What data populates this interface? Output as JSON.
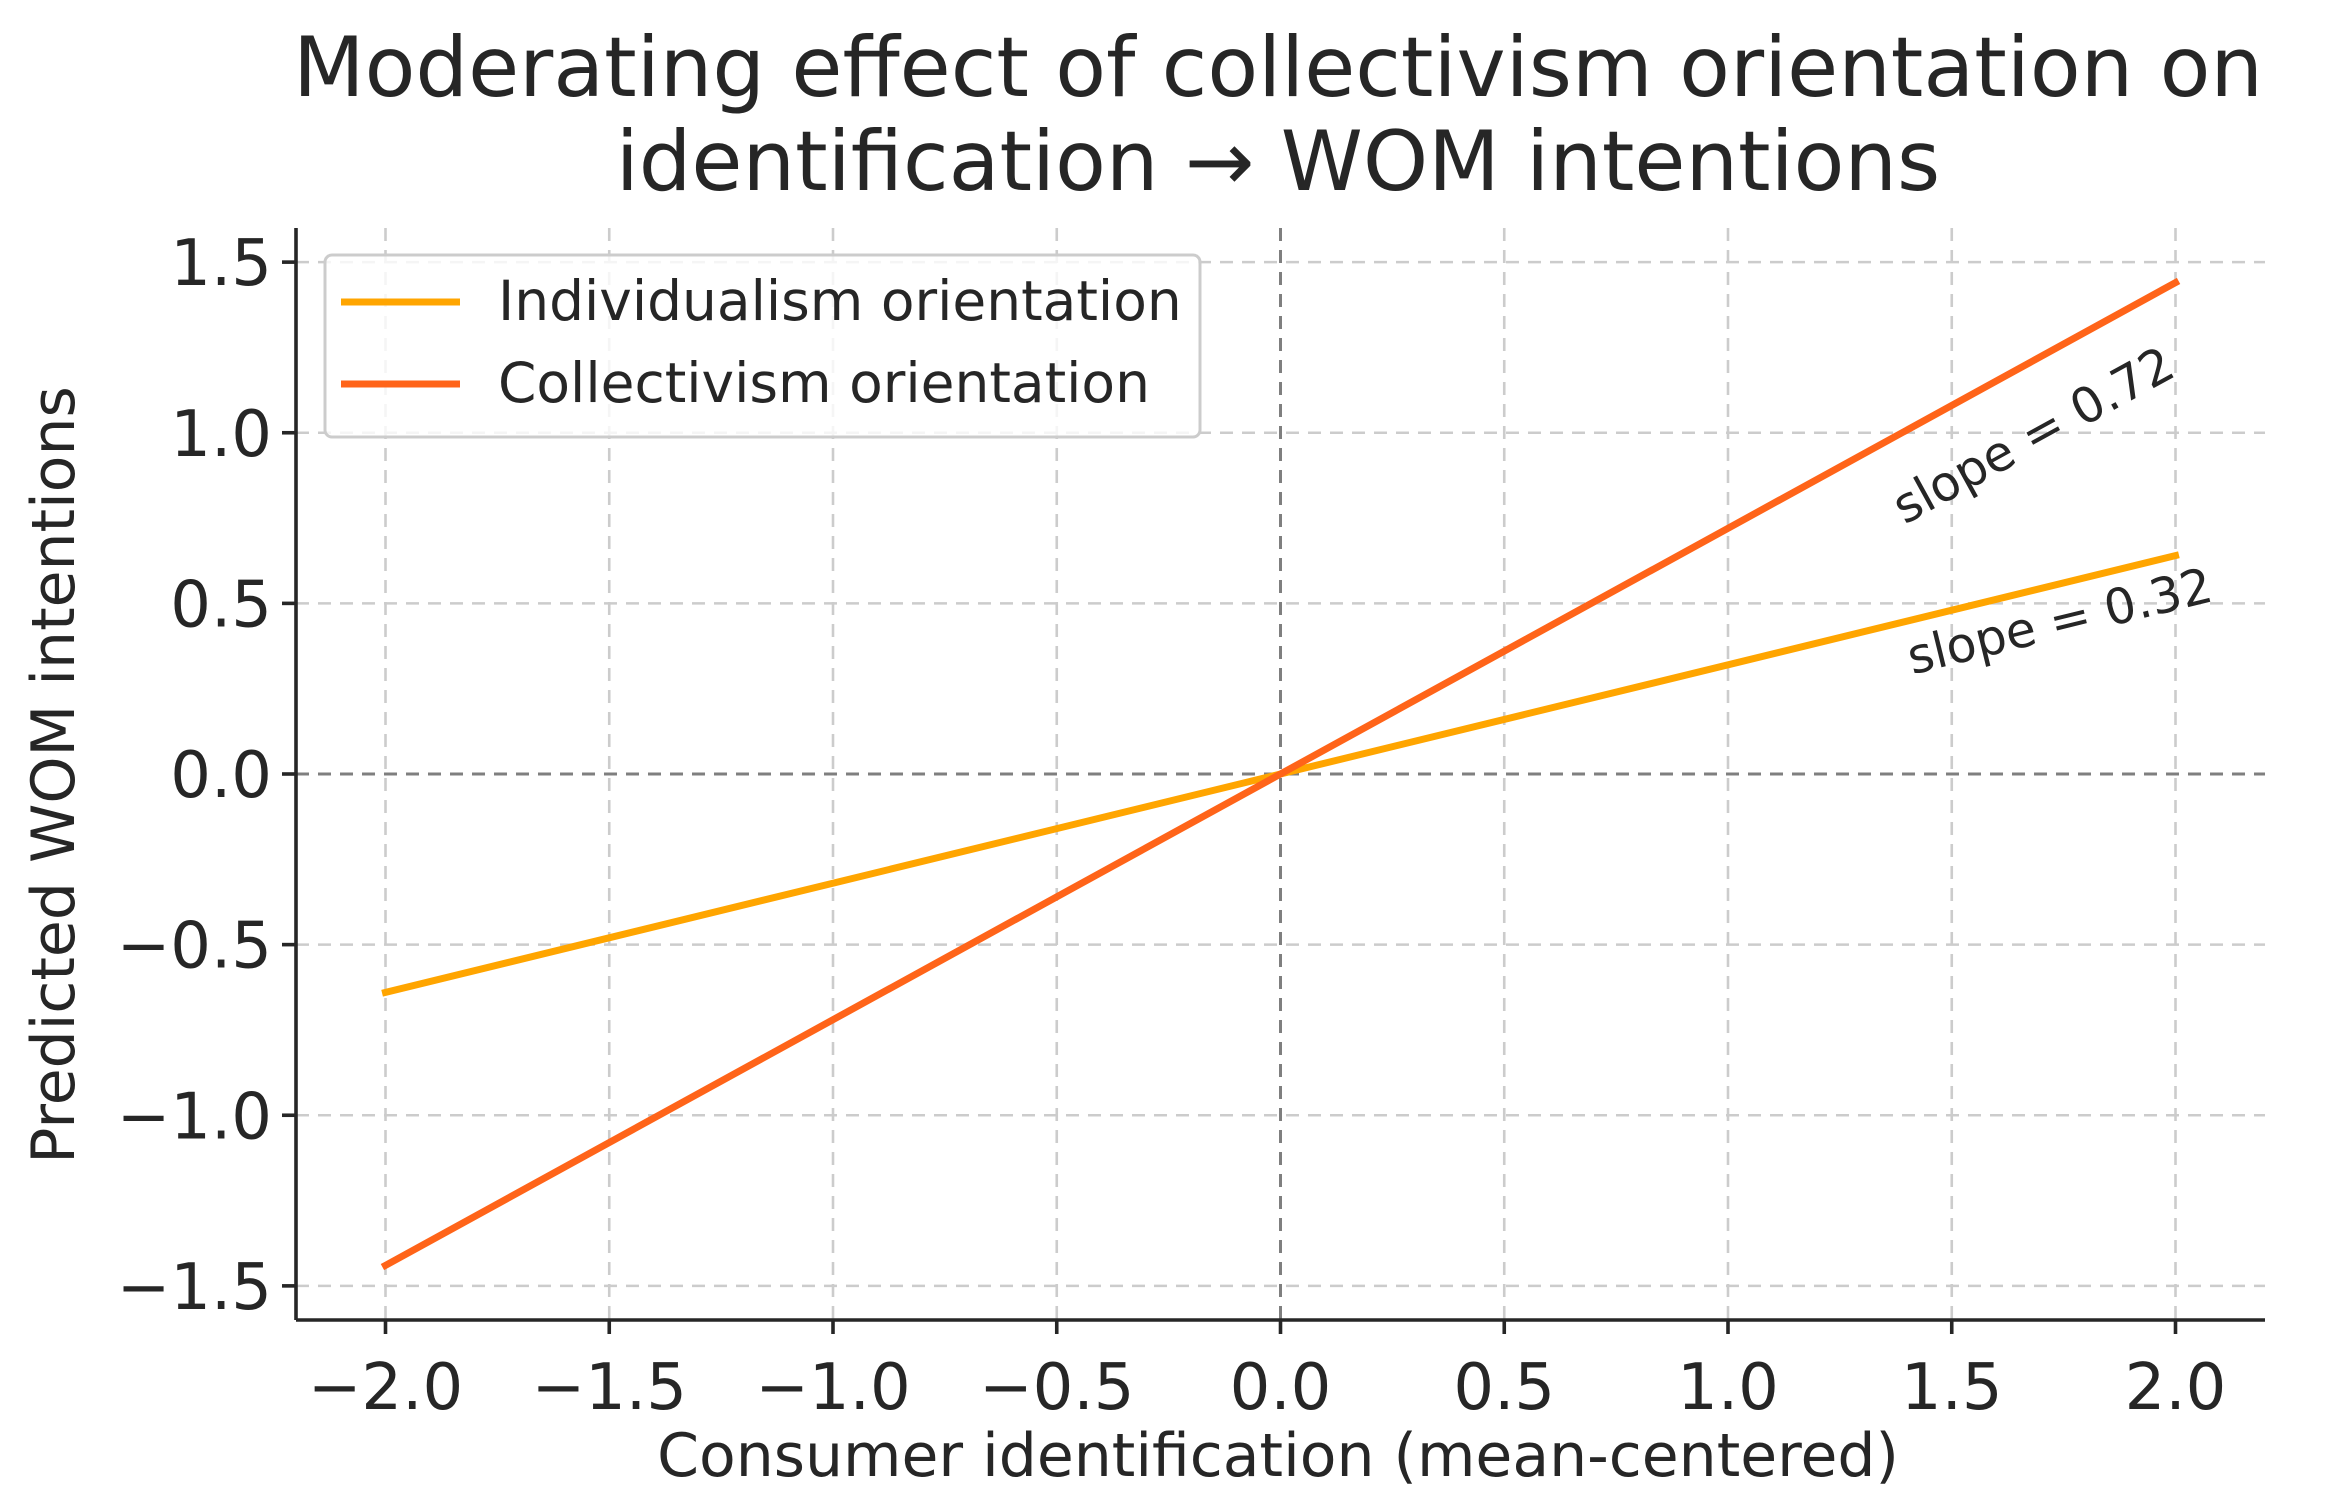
{
  "chart_data": {
    "type": "line",
    "title_lines": [
      "Moderating effect of collectivism orientation on",
      "identification → WOM intentions"
    ],
    "xlabel": "Consumer identification (mean-centered)",
    "ylabel": "Predicted WOM intentions",
    "xlim": [
      -2.2,
      2.2
    ],
    "ylim": [
      -1.6,
      1.6
    ],
    "x_ticks": [
      -2.0,
      -1.5,
      -1.0,
      -0.5,
      0.0,
      0.5,
      1.0,
      1.5,
      2.0
    ],
    "x_tick_labels": [
      "−2.0",
      "−1.5",
      "−1.0",
      "−0.5",
      "0.0",
      "0.5",
      "1.0",
      "1.5",
      "2.0"
    ],
    "y_ticks": [
      1.5,
      1.0,
      0.5,
      0.0,
      -0.5,
      -1.0,
      -1.5
    ],
    "y_tick_labels": [
      "1.5",
      "1.0",
      "0.5",
      "0.0",
      "−0.5",
      "−1.0",
      "−1.5"
    ],
    "grid": true,
    "reference_lines": {
      "x": 0,
      "y": 0
    },
    "legend_position": "top-left",
    "series": [
      {
        "name": "Individualism orientation",
        "color": "#FFA500",
        "x": [
          -2,
          2
        ],
        "y": [
          -0.64,
          0.64
        ],
        "annotation": "slope = 0.32",
        "annotation_x": 1.75,
        "annotation_y": 0.4
      },
      {
        "name": "Collectivism orientation",
        "color": "#FF6419",
        "x": [
          -2,
          2
        ],
        "y": [
          -1.44,
          1.44
        ],
        "annotation": "slope = 0.72",
        "annotation_x": 1.7,
        "annotation_y": 0.95
      }
    ]
  }
}
